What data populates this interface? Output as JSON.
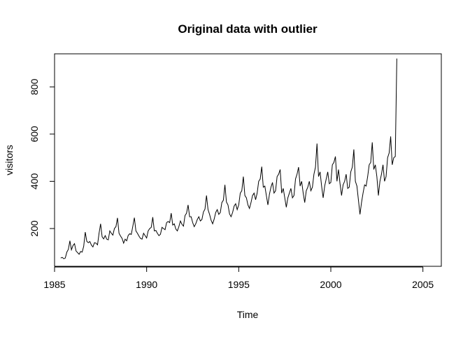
{
  "chart_data": {
    "type": "line",
    "title": "Original data with outlier",
    "xlabel": "Time",
    "ylabel": "visitors",
    "xlim": [
      1985.0,
      2006.0
    ],
    "ylim": [
      40,
      940
    ],
    "x_ticks": [
      1985,
      1990,
      1995,
      2000,
      2005
    ],
    "x_tick_labels": [
      "1985",
      "1990",
      "1995",
      "2000",
      "2005"
    ],
    "y_ticks": [
      200,
      400,
      600,
      800
    ],
    "y_tick_labels": [
      "200",
      "400",
      "600",
      "800"
    ],
    "grid": false,
    "legend": "none",
    "series": [
      {
        "line_color": "#000000",
        "start_year": 1985,
        "start_month": 5,
        "frequency": 12,
        "values": [
          75,
          78,
          72,
          75,
          100,
          112,
          148,
          110,
          128,
          136,
          105,
          98,
          91,
          103,
          100,
          125,
          185,
          146,
          140,
          145,
          130,
          122,
          140,
          138,
          131,
          180,
          220,
          165,
          156,
          170,
          155,
          152,
          190,
          180,
          172,
          200,
          208,
          245,
          180,
          168,
          158,
          138,
          155,
          148,
          171,
          178,
          175,
          210,
          246,
          190,
          180,
          168,
          158,
          155,
          180,
          170,
          160,
          190,
          200,
          205,
          248,
          190,
          192,
          180,
          170,
          176,
          205,
          200,
          195,
          225,
          230,
          225,
          265,
          215,
          220,
          198,
          190,
          208,
          232,
          218,
          210,
          255,
          265,
          300,
          250,
          250,
          225,
          208,
          220,
          238,
          250,
          232,
          238,
          270,
          282,
          340,
          280,
          260,
          235,
          220,
          240,
          268,
          280,
          260,
          268,
          310,
          320,
          385,
          312,
          300,
          262,
          250,
          268,
          295,
          305,
          280,
          300,
          350,
          360,
          420,
          340,
          330,
          300,
          285,
          310,
          340,
          350,
          322,
          350,
          400,
          410,
          462,
          375,
          380,
          340,
          300,
          345,
          375,
          395,
          350,
          360,
          420,
          430,
          450,
          350,
          370,
          330,
          290,
          330,
          350,
          370,
          330,
          340,
          410,
          430,
          460,
          380,
          400,
          350,
          310,
          360,
          375,
          400,
          360,
          375,
          430,
          460,
          560,
          420,
          440,
          380,
          330,
          380,
          410,
          440,
          390,
          395,
          470,
          480,
          505,
          400,
          450,
          390,
          340,
          385,
          400,
          430,
          370,
          375,
          440,
          460,
          535,
          400,
          380,
          320,
          260,
          310,
          350,
          385,
          380,
          420,
          470,
          480,
          565,
          450,
          470,
          420,
          340,
          400,
          430,
          470,
          400,
          420,
          500,
          520,
          590,
          470,
          500,
          505,
          920
        ]
      }
    ]
  }
}
